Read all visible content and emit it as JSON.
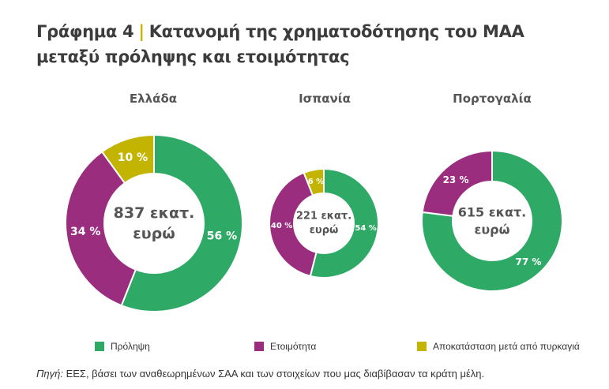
{
  "header": {
    "figure_number": "Γράφημα 4",
    "separator": "|",
    "title_text": "Κατανομή της χρηματοδότησης του ΜΑΑ μεταξύ πρόληψης και ετοιμότητας"
  },
  "colors": {
    "prevention": "#2eaa66",
    "preparedness": "#9b2d7f",
    "restoration": "#c2b400"
  },
  "chart_data": {
    "type": "pie",
    "categories": [
      "Πρόληψη",
      "Ετοιμότητα",
      "Αποκατάσταση μετά από πυρκαγιά"
    ],
    "charts": [
      {
        "country": "Ελλάδα",
        "total_label": [
          "837 εκατ.",
          "ευρώ"
        ],
        "values": [
          56,
          34,
          10
        ],
        "labels": [
          "56 %",
          "34 %",
          "10 %"
        ]
      },
      {
        "country": "Ισπανία",
        "total_label": [
          "221 εκατ.",
          "ευρώ"
        ],
        "values": [
          54,
          40,
          6
        ],
        "labels": [
          "54 %",
          "40 %",
          "6 %"
        ]
      },
      {
        "country": "Πορτογαλία",
        "total_label": [
          "615 εκατ.",
          "ευρώ"
        ],
        "values": [
          77,
          23,
          0
        ],
        "labels": [
          "77 %",
          "23 %",
          ""
        ]
      }
    ]
  },
  "legend": {
    "items": [
      {
        "label": "Πρόληψη"
      },
      {
        "label": "Ετοιμότητα"
      },
      {
        "label": "Αποκατάσταση μετά από πυρκαγιά"
      }
    ]
  },
  "source": {
    "label": "Πηγή:",
    "text": " ΕΕΣ, βάσει των αναθεωρημένων ΣΑΑ και των στοιχείων που μας διαβίβασαν τα κράτη μέλη."
  }
}
